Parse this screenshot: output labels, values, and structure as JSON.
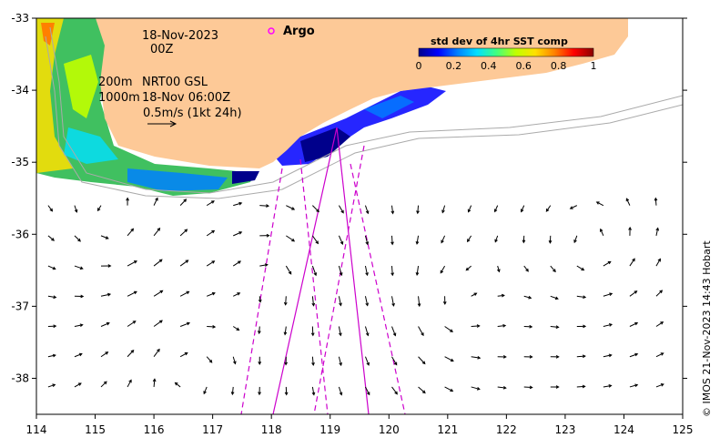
{
  "annotations": {
    "date": "18-Nov-2023",
    "hour": "00Z",
    "depth_200": "200m",
    "depth_1000": "1000m",
    "product": "NRT00 GSL",
    "product_time": "18-Nov 06:00Z",
    "scale_label": "0.5m/s (1kt 24h)",
    "argo_label": "Argo",
    "credit": "© IMOS 21-Nov-2023 14:43 Hobart"
  },
  "colorbar": {
    "title": "std dev of 4hr SST comp",
    "ticks": [
      "0",
      "0.2",
      "0.4",
      "0.6",
      "0.8",
      "1"
    ],
    "colors": [
      "#00008b",
      "#0000ff",
      "#0080ff",
      "#00e0ff",
      "#40ff80",
      "#c0ff00",
      "#ffe000",
      "#ff8000",
      "#ff0000",
      "#8b0000"
    ]
  },
  "axes": {
    "lon_range": [
      114,
      125
    ],
    "lat_range": [
      -38.5,
      -33
    ],
    "lon_ticks": [
      "114",
      "115",
      "116",
      "117",
      "118",
      "119",
      "120",
      "121",
      "122",
      "123",
      "124",
      "125"
    ],
    "lat_ticks": [
      "-33",
      "-34",
      "-35",
      "-36",
      "-37",
      "-38"
    ]
  },
  "colors": {
    "land": "#fdc997",
    "argo_marker": "#ff00ff",
    "track_line": "#cc00cc",
    "isobath": "#aaaaaa"
  }
}
